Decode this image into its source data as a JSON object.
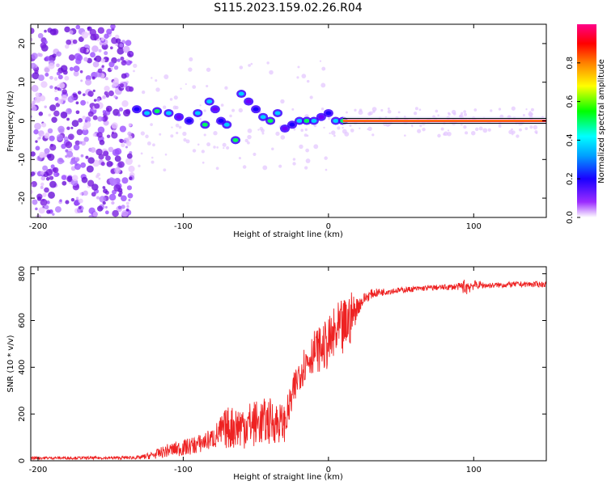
{
  "title": "S115.2023.159.02.26.R04",
  "colors": {
    "snr_line": "#ee2222",
    "axis": "#000000",
    "dots": "#7a1fe0",
    "band": "#ff2a2a"
  },
  "chart_data": [
    {
      "type": "heatmap",
      "name": "spectrogram",
      "xlabel": "Height of straight line (km)",
      "ylabel": "Frequency (Hz)",
      "xlim": [
        -205,
        150
      ],
      "ylim": [
        -25,
        25
      ],
      "xticks": [
        -200,
        -100,
        0,
        100
      ],
      "xticklabels": [
        "-200",
        "-100",
        "0",
        "100"
      ],
      "yticks": [
        20,
        10,
        0,
        -10,
        -20
      ],
      "yticklabels": [
        "20",
        "10",
        "0",
        "-10",
        "-20"
      ],
      "colorbar": {
        "label": "Normalized spectral amplitude",
        "range": [
          0,
          1
        ],
        "ticks": [
          0.0,
          0.2,
          0.4,
          0.6,
          0.8
        ],
        "ticklabels": [
          "0.0",
          "0.2",
          "0.4",
          "0.6",
          "0.8"
        ],
        "colormap": [
          "#ffffff",
          "#7a00ff",
          "#0000ff",
          "#00ffff",
          "#00ff00",
          "#ffff00",
          "#ff8000",
          "#ff0000",
          "#ff0088"
        ]
      },
      "features": {
        "noise_region_x": [
          -205,
          -135
        ],
        "tone_band_x": [
          10,
          150
        ],
        "tone_frequency_hz": 0,
        "trace_points": [
          [
            -132,
            3
          ],
          [
            -125,
            2
          ],
          [
            -118,
            2.5
          ],
          [
            -110,
            2
          ],
          [
            -103,
            1
          ],
          [
            -96,
            0
          ],
          [
            -90,
            2
          ],
          [
            -85,
            -1
          ],
          [
            -82,
            5
          ],
          [
            -78,
            3
          ],
          [
            -74,
            0
          ],
          [
            -70,
            -1
          ],
          [
            -64,
            -5
          ],
          [
            -60,
            7
          ],
          [
            -55,
            5
          ],
          [
            -50,
            3
          ],
          [
            -45,
            1
          ],
          [
            -40,
            0
          ],
          [
            -35,
            2
          ],
          [
            -30,
            -2
          ],
          [
            -25,
            -1
          ],
          [
            -20,
            0
          ],
          [
            -15,
            0
          ],
          [
            -10,
            0
          ],
          [
            -5,
            1
          ],
          [
            0,
            2
          ],
          [
            5,
            0
          ],
          [
            10,
            0
          ]
        ]
      }
    },
    {
      "type": "line",
      "name": "snr",
      "xlabel": "Height of straight line (km)",
      "ylabel": "SNR (10 * v/v)",
      "xlim": [
        -205,
        150
      ],
      "ylim": [
        0,
        830
      ],
      "xticks": [
        -200,
        -100,
        0,
        100
      ],
      "xticklabels": [
        "-200",
        "-100",
        "0",
        "100"
      ],
      "yticks": [
        0,
        200,
        400,
        600,
        800
      ],
      "yticklabels": [
        "0",
        "200",
        "400",
        "600",
        "800"
      ],
      "envelope": {
        "x": [
          -205,
          -150,
          -130,
          -120,
          -110,
          -100,
          -90,
          -80,
          -70,
          -60,
          -50,
          -40,
          -30,
          -20,
          -10,
          -5,
          0,
          5,
          10,
          15,
          20,
          25,
          30,
          40,
          50,
          60,
          70,
          80,
          90,
          95,
          100,
          110,
          120,
          130,
          140,
          150
        ],
        "mean": [
          12,
          12,
          14,
          25,
          45,
          55,
          70,
          95,
          140,
          150,
          160,
          170,
          160,
          380,
          470,
          480,
          500,
          540,
          560,
          610,
          660,
          695,
          715,
          725,
          730,
          735,
          740,
          742,
          745,
          745,
          752,
          750,
          752,
          755,
          755,
          755
        ],
        "spread": [
          6,
          6,
          8,
          18,
          30,
          35,
          40,
          45,
          90,
          100,
          100,
          100,
          80,
          80,
          90,
          100,
          110,
          130,
          130,
          120,
          40,
          25,
          20,
          15,
          12,
          12,
          12,
          12,
          15,
          40,
          20,
          12,
          12,
          12,
          12,
          12
        ]
      }
    }
  ]
}
